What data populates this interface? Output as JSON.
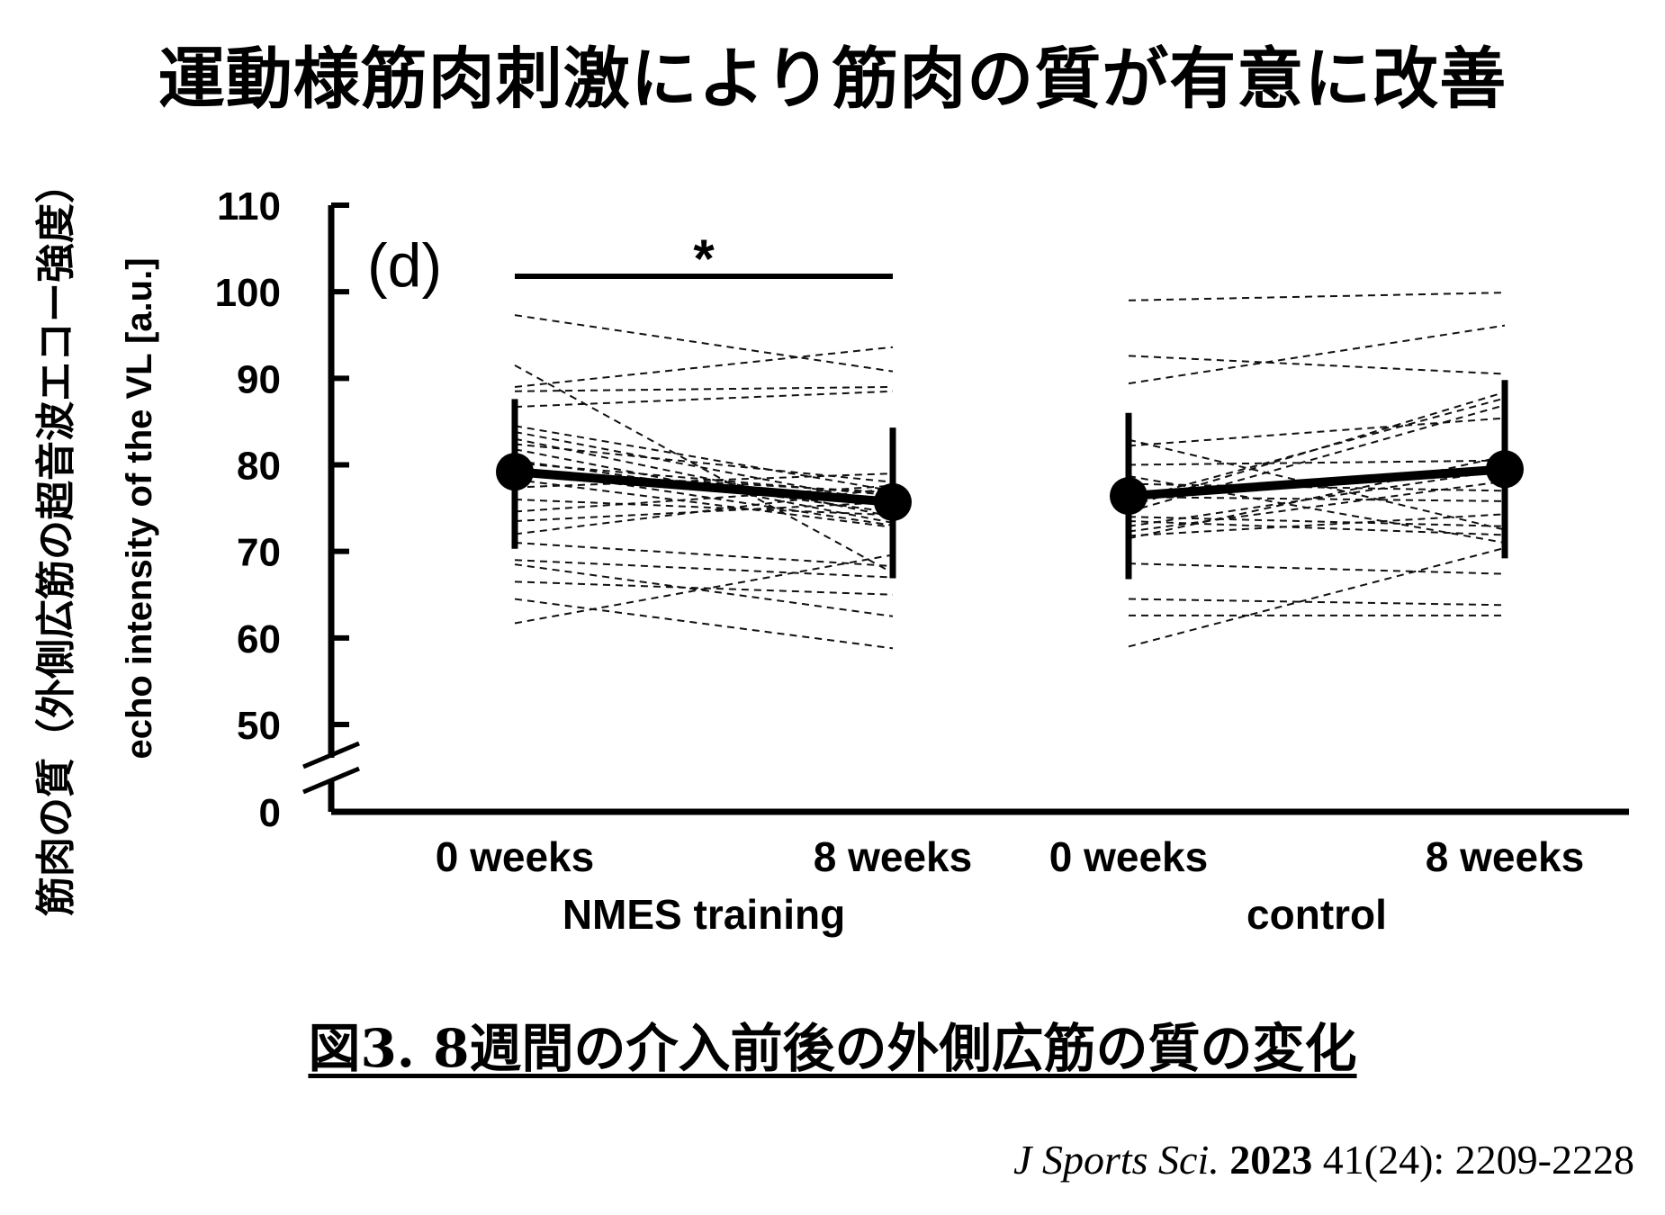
{
  "title": "運動様筋肉刺激により筋肉の質が有意に改善",
  "side_label": "筋肉の質（外側広筋の超音波エコー強度）",
  "caption": "図3. 8週間の介入前後の外側広筋の質の変化",
  "citation": {
    "journal": "J Sports Sci.",
    "year": "2023",
    "details": "41(24): 2209-2228"
  },
  "chart_data": {
    "type": "line",
    "panel_label": "(d)",
    "ylabel": "echo intensity of the VL [a.u.]",
    "yticks": [
      0,
      50,
      60,
      70,
      80,
      90,
      100,
      110
    ],
    "ylim_upper": [
      50,
      110
    ],
    "axis_break": true,
    "significance": {
      "marker": "*",
      "group": "NMES training"
    },
    "groups": [
      {
        "name": "NMES training",
        "x_labels": [
          "0 weeks",
          "8 weeks"
        ],
        "mean": [
          79.2,
          75.7
        ],
        "error_low": [
          70.3,
          66.9
        ],
        "error_high": [
          87.6,
          84.3
        ],
        "individuals": [
          [
            97.3,
            90.8
          ],
          [
            91.5,
            67.5
          ],
          [
            89.0,
            93.6
          ],
          [
            88.5,
            89.0
          ],
          [
            86.7,
            88.5
          ],
          [
            84.5,
            77.0
          ],
          [
            83.8,
            75.5
          ],
          [
            83.0,
            74.0
          ],
          [
            82.4,
            78.0
          ],
          [
            81.8,
            73.3
          ],
          [
            80.5,
            74.5
          ],
          [
            80.2,
            76.5
          ],
          [
            79.6,
            73.0
          ],
          [
            79.2,
            76.8
          ],
          [
            78.3,
            72.8
          ],
          [
            77.4,
            79.0
          ],
          [
            76.0,
            74.2
          ],
          [
            74.6,
            77.6
          ],
          [
            73.5,
            75.7
          ],
          [
            72.0,
            77.3
          ],
          [
            71.0,
            68.3
          ],
          [
            69.0,
            67.0
          ],
          [
            68.5,
            62.5
          ],
          [
            66.5,
            65.0
          ],
          [
            64.5,
            58.8
          ],
          [
            61.7,
            69.6
          ]
        ]
      },
      {
        "name": "control",
        "x_labels": [
          "0 weeks",
          "8 weeks"
        ],
        "mean": [
          76.4,
          79.5
        ],
        "error_low": [
          66.8,
          69.2
        ],
        "error_high": [
          86.0,
          89.8
        ],
        "individuals": [
          [
            99.0,
            99.9
          ],
          [
            92.6,
            90.5
          ],
          [
            89.4,
            96.1
          ],
          [
            82.9,
            72.5
          ],
          [
            82.2,
            85.4
          ],
          [
            80.0,
            80.5
          ],
          [
            78.7,
            71.0
          ],
          [
            77.8,
            77.0
          ],
          [
            76.3,
            75.8
          ],
          [
            75.9,
            87.7
          ],
          [
            75.2,
            88.4
          ],
          [
            74.6,
            86.9
          ],
          [
            74.0,
            72.9
          ],
          [
            73.5,
            71.9
          ],
          [
            72.9,
            79.4
          ],
          [
            72.3,
            78.1
          ],
          [
            71.8,
            74.3
          ],
          [
            71.5,
            81.0
          ],
          [
            68.6,
            67.4
          ],
          [
            64.5,
            63.8
          ],
          [
            62.6,
            62.6
          ],
          [
            59.0,
            70.4
          ]
        ]
      }
    ]
  }
}
